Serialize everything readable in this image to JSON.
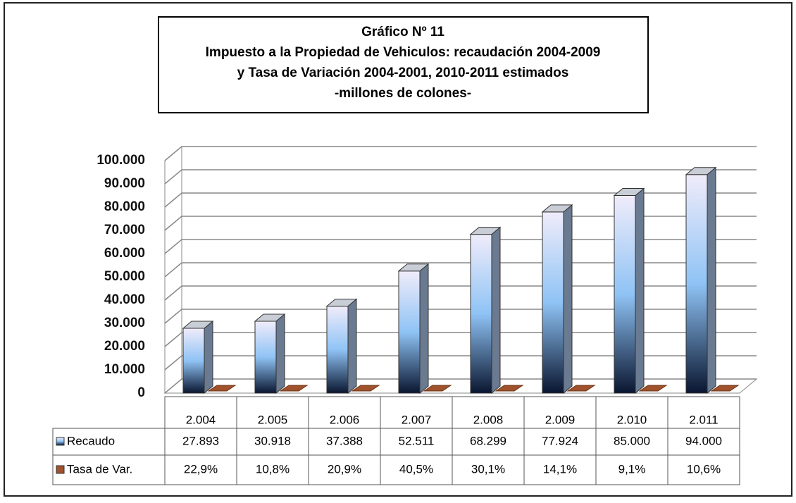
{
  "chart_data": {
    "type": "bar3d",
    "title": [
      "Gráfico Nº 11",
      "Impuesto a la Propiedad de Vehiculos: recaudación 2004-2009",
      "y Tasa de Variación 2004-2001, 2010-2011 estimados",
      "-millones de colones-"
    ],
    "categories": [
      "2.004",
      "2.005",
      "2.006",
      "2.007",
      "2.008",
      "2.009",
      "2.010",
      "2.011"
    ],
    "series": [
      {
        "name": "Recaudo",
        "color": "#8fc3f5",
        "values": [
          27893,
          30918,
          37388,
          52511,
          68299,
          77924,
          85000,
          94000
        ],
        "value_labels": [
          "27.893",
          "30.918",
          "37.388",
          "52.511",
          "68.299",
          "77.924",
          "85.000",
          "94.000"
        ]
      },
      {
        "name": "Tasa de Var.",
        "color": "#a0522d",
        "values": [
          22.9,
          10.8,
          20.9,
          40.5,
          30.1,
          14.1,
          9.1,
          10.6
        ],
        "value_labels": [
          "22,9%",
          "10,8%",
          "20,9%",
          "40,5%",
          "30,1%",
          "14,1%",
          "9,1%",
          "10,6%"
        ]
      }
    ],
    "ylim": [
      0,
      100000
    ],
    "yticks": [
      0,
      {
        "value": 10000,
        "label": "10.000"
      },
      {
        "value": 20000,
        "label": "20.000"
      },
      {
        "value": 30000,
        "label": "30.000"
      },
      {
        "value": 40000,
        "label": "40.000"
      },
      {
        "value": 50000,
        "label": "50.000"
      },
      {
        "value": 60000,
        "label": "60.000"
      },
      {
        "value": 70000,
        "label": "70.000"
      },
      {
        "value": 80000,
        "label": "80.000"
      },
      {
        "value": 90000,
        "label": "90.000"
      },
      {
        "value": 100000,
        "label": "100.000"
      }
    ],
    "grid": true
  }
}
